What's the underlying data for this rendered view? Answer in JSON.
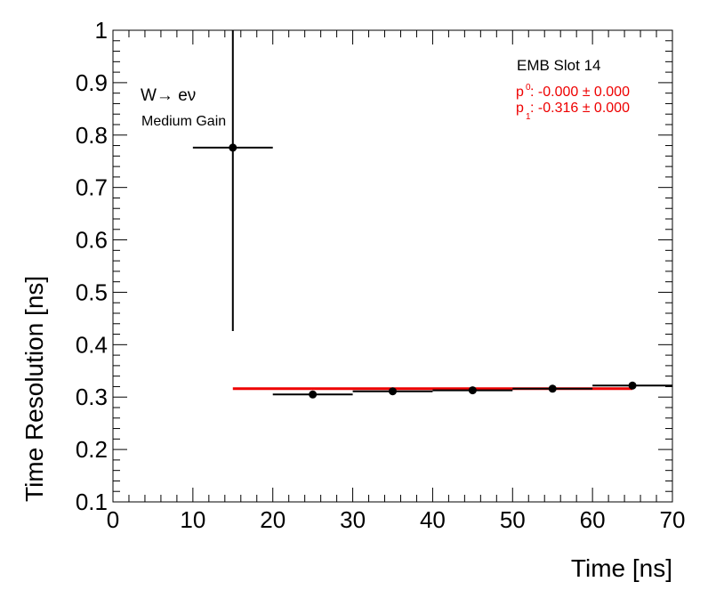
{
  "chart_data": {
    "type": "scatter",
    "xlabel": "Time [ns]",
    "ylabel": "Time Resolution [ns]",
    "xlim": [
      0,
      70
    ],
    "ylim": [
      0.1,
      1.0
    ],
    "x_ticks": [
      "0",
      "10",
      "20",
      "30",
      "40",
      "50",
      "60",
      "70"
    ],
    "y_ticks": [
      "0.1",
      "0.2",
      "0.3",
      "0.4",
      "0.5",
      "0.6",
      "0.7",
      "0.8",
      "0.9",
      "1"
    ],
    "grid": false,
    "series": [
      {
        "points": [
          {
            "x": 15,
            "y": 0.776,
            "xerr": 5,
            "yerr_low": 0.35,
            "yerr_high": 0.3
          },
          {
            "x": 25,
            "y": 0.305,
            "xerr": 5,
            "yerr_low": 0.0,
            "yerr_high": 0.0
          },
          {
            "x": 35,
            "y": 0.311,
            "xerr": 5,
            "yerr_low": 0.0,
            "yerr_high": 0.0
          },
          {
            "x": 45,
            "y": 0.313,
            "xerr": 5,
            "yerr_low": 0.0,
            "yerr_high": 0.0
          },
          {
            "x": 55,
            "y": 0.316,
            "xerr": 5,
            "yerr_low": 0.0,
            "yerr_high": 0.0
          },
          {
            "x": 65,
            "y": 0.322,
            "xerr": 5,
            "yerr_low": 0.0,
            "yerr_high": 0.0
          }
        ],
        "color": "#000000"
      }
    ],
    "fit": {
      "color": "#ee0000",
      "x_range": [
        15,
        65
      ],
      "y": 0.316
    },
    "annotations": {
      "process_text": "W→ eν",
      "gain_text": "Medium Gain",
      "slot_text": "EMB Slot 14",
      "p0_label": "p",
      "p0_sub": "0",
      "p0_text": ": -0.000 ± 0.000",
      "p1_label": "p",
      "p1_sub": "1",
      "p1_text": ": -0.316 ± 0.000"
    }
  }
}
